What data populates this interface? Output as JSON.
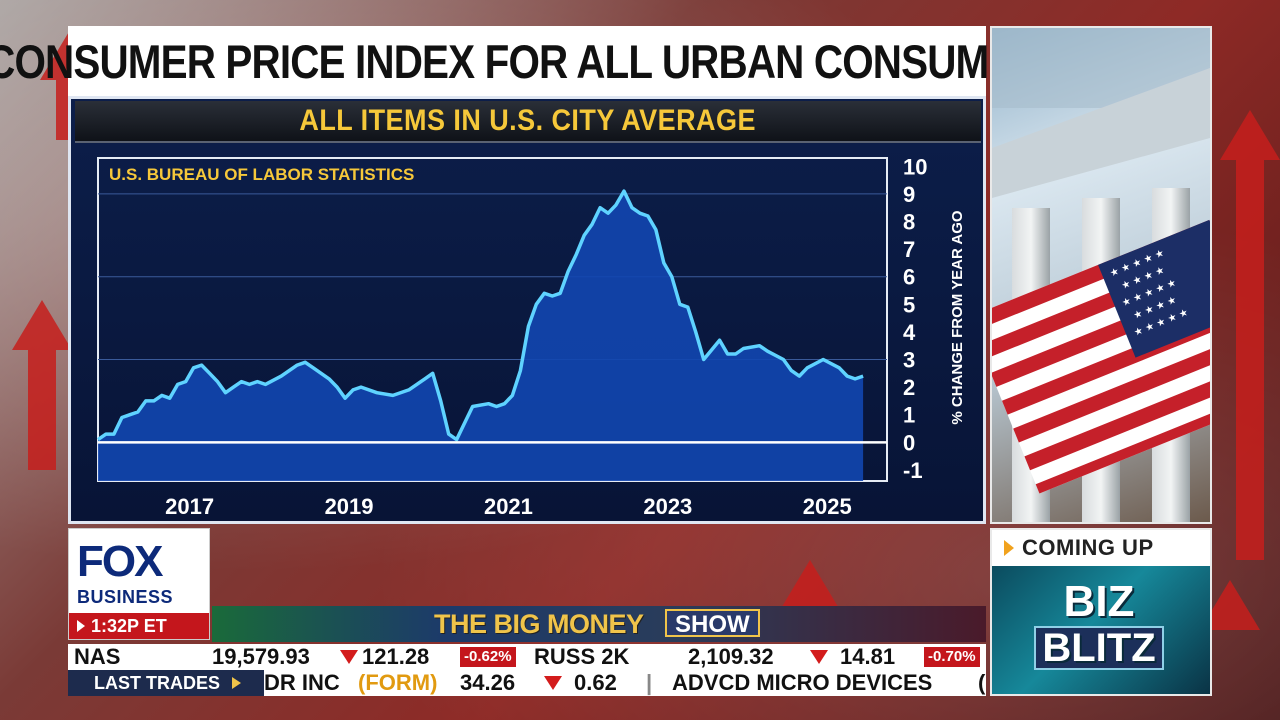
{
  "graphic": {
    "title": "CONSUMER PRICE INDEX FOR ALL URBAN CONSUMERS",
    "subtitle": "ALL ITEMS IN U.S. CITY AVERAGE"
  },
  "chart_data": {
    "type": "area",
    "source_label": "U.S. BUREAU OF LABOR STATISTICS",
    "ylabel": "% CHANGE FROM YEAR AGO",
    "xlabel": "",
    "x_ticks": [
      "2017",
      "2019",
      "2021",
      "2023",
      "2025"
    ],
    "y_ticks": [
      "10",
      "9",
      "8",
      "7",
      "6",
      "5",
      "4",
      "3",
      "2",
      "1",
      "0",
      "-1"
    ],
    "ylim": [
      -1.4,
      10.3
    ],
    "xlim": [
      2015.9,
      2025.8
    ],
    "grid": true,
    "colors": {
      "fill": "#1246b0",
      "line": "#5fd3ff",
      "zero_line": "#ffffff"
    },
    "series": [
      {
        "x": [
          2015.9,
          2016.0,
          2016.1,
          2016.2,
          2016.3,
          2016.4,
          2016.5,
          2016.6,
          2016.7,
          2016.8,
          2016.9,
          2017.0,
          2017.1,
          2017.2,
          2017.3,
          2017.4,
          2017.5,
          2017.6,
          2017.7,
          2017.8,
          2017.9,
          2018.0,
          2018.2,
          2018.4,
          2018.5,
          2018.6,
          2018.8,
          2018.9,
          2019.0,
          2019.1,
          2019.2,
          2019.4,
          2019.6,
          2019.8,
          2019.9,
          2020.0,
          2020.1,
          2020.2,
          2020.3,
          2020.4,
          2020.5,
          2020.6,
          2020.8,
          2020.9,
          2021.0,
          2021.1,
          2021.2,
          2021.3,
          2021.4,
          2021.5,
          2021.6,
          2021.7,
          2021.8,
          2021.9,
          2022.0,
          2022.1,
          2022.2,
          2022.3,
          2022.4,
          2022.5,
          2022.6,
          2022.7,
          2022.8,
          2022.9,
          2023.0,
          2023.1,
          2023.2,
          2023.3,
          2023.4,
          2023.5,
          2023.7,
          2023.8,
          2023.9,
          2024.0,
          2024.2,
          2024.3,
          2024.5,
          2024.6,
          2024.7,
          2024.8,
          2025.0,
          2025.2,
          2025.3,
          2025.4,
          2025.5
        ],
        "values": [
          0.1,
          0.3,
          0.3,
          0.9,
          1.0,
          1.1,
          1.5,
          1.5,
          1.7,
          1.6,
          2.1,
          2.2,
          2.7,
          2.8,
          2.5,
          2.2,
          1.8,
          2.0,
          2.2,
          2.1,
          2.2,
          2.1,
          2.4,
          2.8,
          2.9,
          2.7,
          2.3,
          2.0,
          1.6,
          1.9,
          2.0,
          1.8,
          1.7,
          1.9,
          2.1,
          2.3,
          2.5,
          1.5,
          0.3,
          0.1,
          0.7,
          1.3,
          1.4,
          1.3,
          1.4,
          1.7,
          2.6,
          4.2,
          5.0,
          5.4,
          5.3,
          5.4,
          6.2,
          6.8,
          7.5,
          7.9,
          8.5,
          8.3,
          8.6,
          9.1,
          8.5,
          8.3,
          8.2,
          7.7,
          6.5,
          6.0,
          5.0,
          4.9,
          4.0,
          3.0,
          3.7,
          3.2,
          3.2,
          3.4,
          3.5,
          3.3,
          3.0,
          2.6,
          2.4,
          2.7,
          3.0,
          2.7,
          2.4,
          2.3,
          2.4
        ]
      }
    ]
  },
  "coming_up": {
    "header": "COMING UP",
    "line1": "BIZ",
    "line2": "BLITZ"
  },
  "logo": {
    "brand": "FOX",
    "sub": "BUSINESS",
    "time": "1:32P ET"
  },
  "show": {
    "name": "THE BIG MONEY",
    "badge": "SHOW"
  },
  "ticker": {
    "nas_symbol": "NAS",
    "nas_value": "19,579.93",
    "nas_change": "121.28",
    "nas_pct": "-0.62%",
    "russ_symbol": "RUSS 2K",
    "russ_value": "2,109.32",
    "russ_change": "14.81",
    "russ_pct": "-0.70%",
    "down_color": "#d31c1c"
  },
  "trades": {
    "label": "LAST TRADES",
    "company1": "DR INC",
    "symbol1": "(FORM)",
    "price1": "34.26",
    "change1": "0.62",
    "company2": "ADVCD MICRO DEVICES",
    "separator": "|",
    "bracket": "("
  }
}
